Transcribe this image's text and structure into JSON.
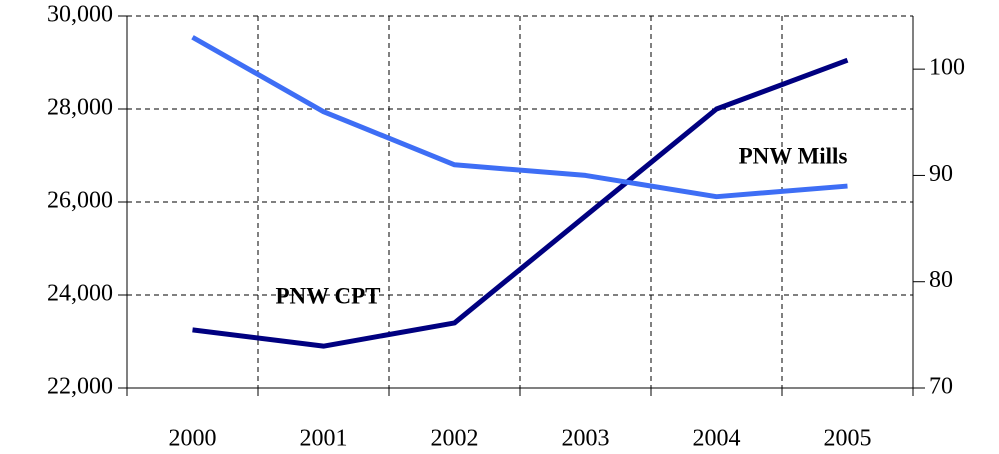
{
  "chart_data": {
    "type": "line",
    "categories": [
      "2000",
      "2001",
      "2002",
      "2003",
      "2004",
      "2005"
    ],
    "series": [
      {
        "name": "PNW CPT",
        "color": "#000080",
        "values": [
          23250,
          22900,
          23400,
          25700,
          28000,
          29050
        ]
      },
      {
        "name": "PNW Mills",
        "color": "#3e6ef5",
        "axis": "y2",
        "values": [
          103,
          96,
          91,
          90,
          88,
          89
        ]
      }
    ],
    "ylim": [
      22000,
      30000
    ],
    "yticks": [
      {
        "value": 22000,
        "label": "22,000"
      },
      {
        "value": 24000,
        "label": "24,000"
      },
      {
        "value": 26000,
        "label": "26,000"
      },
      {
        "value": 28000,
        "label": "28,000"
      },
      {
        "value": 30000,
        "label": "30,000"
      }
    ],
    "y2lim": [
      70,
      105
    ],
    "y2ticks": [
      70,
      80,
      90,
      100
    ],
    "grid": true
  }
}
